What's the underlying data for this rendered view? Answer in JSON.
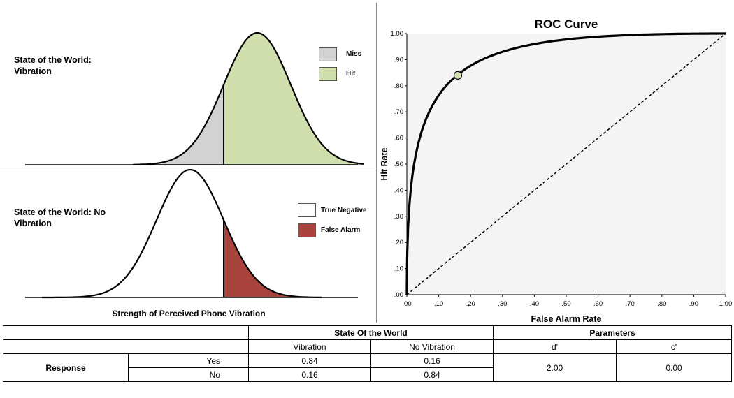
{
  "colors": {
    "miss": "#d2d2d2",
    "hit": "#d1dfae",
    "true_negative": "#ffffff",
    "false_alarm": "#a8433d",
    "roc_background": "#f4f4f4",
    "roc_point": "#d1dfae"
  },
  "top_panel": {
    "state_label_line1": "State of the World:",
    "state_label_line2": "Vibration",
    "legend": [
      "Miss",
      "Hit"
    ]
  },
  "bottom_panel": {
    "state_label_line1": "State of the World: No",
    "state_label_line2": "Vibration",
    "legend": [
      "True Negative",
      "False Alarm"
    ],
    "xlabel": "Strength of Perceived Phone Vibration"
  },
  "table": {
    "header_state": "State Of the World",
    "header_params": "Parameters",
    "col_vibration": "Vibration",
    "col_no_vibration": "No Vibration",
    "col_dprime": "d'",
    "col_cprime": "c'",
    "row_group": "Response",
    "row_yes": "Yes",
    "row_no": "No",
    "yes_vibration": "0.84",
    "yes_no_vibration": "0.16",
    "no_vibration": "0.16",
    "no_no_vibration": "0.84",
    "dprime": "2.00",
    "cprime": "0.00"
  },
  "chart_data": {
    "type": "line",
    "title": "ROC Curve",
    "xlabel": "False Alarm Rate",
    "ylabel": "Hit Rate",
    "xlim": [
      0,
      1
    ],
    "ylim": [
      0,
      1
    ],
    "xticks": [
      ".00",
      ".10",
      ".20",
      ".30",
      ".40",
      ".50",
      ".60",
      ".70",
      ".80",
      ".90",
      "1.00"
    ],
    "yticks": [
      ".00",
      ".10",
      ".20",
      ".30",
      ".40",
      ".50",
      ".60",
      ".70",
      ".80",
      ".90",
      "1.00"
    ],
    "d_prime": 2.0,
    "series": [
      {
        "x": [
          0.0,
          0.001,
          0.005,
          0.01,
          0.02,
          0.04,
          0.06,
          0.1,
          0.16,
          0.2,
          0.3,
          0.4,
          0.5,
          0.6,
          0.7,
          0.8,
          0.9,
          1.0
        ],
        "y": [
          0.0,
          0.2,
          0.35,
          0.43,
          0.53,
          0.64,
          0.7,
          0.78,
          0.84,
          0.87,
          0.92,
          0.95,
          0.97,
          0.98,
          0.99,
          0.995,
          0.999,
          1.0
        ]
      },
      {
        "x": [
          0,
          1
        ],
        "y": [
          0,
          1
        ]
      }
    ],
    "point": {
      "x": 0.16,
      "y": 0.84
    }
  }
}
